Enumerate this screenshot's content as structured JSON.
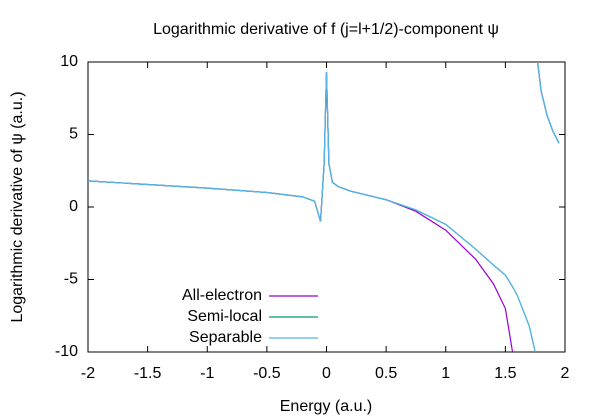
{
  "chart_data": {
    "type": "line",
    "title": "Logarithmic derivative of f (j=l+1/2)-component ψ",
    "xlabel": "Energy (a.u.)",
    "ylabel": "Logarithmic derivative of ψ (a.u.)",
    "x": [
      -2,
      -1.5,
      -1,
      -0.5,
      -0.2,
      -0.1,
      -0.05,
      -0.02,
      0,
      0.02,
      0.05,
      0.1,
      0.2,
      0.5,
      0.75,
      1,
      1.25,
      1.4,
      1.5,
      1.56,
      1.6,
      1.7,
      1.75,
      1.76,
      1.77,
      1.8,
      1.85,
      1.9,
      1.95
    ],
    "series": [
      {
        "name": "All-electron",
        "color": "#9400d3",
        "values": [
          1.8,
          1.55,
          1.3,
          1.0,
          0.7,
          0.4,
          -1.0,
          3,
          9.3,
          3,
          1.7,
          1.4,
          1.1,
          0.5,
          -0.3,
          -1.6,
          -3.6,
          -5.3,
          -7.0,
          -10,
          null,
          null,
          null,
          null,
          10,
          8,
          6.3,
          5.2,
          4.4
        ]
      },
      {
        "name": "Semi-local",
        "color": "#009e73",
        "values": [
          1.8,
          1.55,
          1.3,
          1.0,
          0.7,
          0.4,
          -1.0,
          3,
          9.3,
          3,
          1.7,
          1.4,
          1.1,
          0.5,
          -0.2,
          -1.2,
          -2.9,
          -4.0,
          -4.7,
          -5.5,
          -6.1,
          -8.2,
          -10,
          null,
          10,
          8,
          6.3,
          5.2,
          4.4
        ]
      },
      {
        "name": "Separable",
        "color": "#56b4e9",
        "values": [
          1.8,
          1.55,
          1.3,
          1.0,
          0.7,
          0.4,
          -1.0,
          3,
          9.3,
          3,
          1.7,
          1.4,
          1.1,
          0.5,
          -0.2,
          -1.2,
          -2.9,
          -4.0,
          -4.7,
          -5.5,
          -6.1,
          -8.2,
          -10,
          null,
          10,
          8,
          6.3,
          5.2,
          4.4
        ]
      }
    ],
    "xlim": [
      -2,
      2
    ],
    "ylim": [
      -10,
      10
    ],
    "xticks": [
      -2,
      -1.5,
      -1,
      -0.5,
      0,
      0.5,
      1,
      1.5,
      2
    ],
    "yticks": [
      -10,
      -5,
      0,
      5,
      10
    ],
    "legend": "lower-left"
  }
}
